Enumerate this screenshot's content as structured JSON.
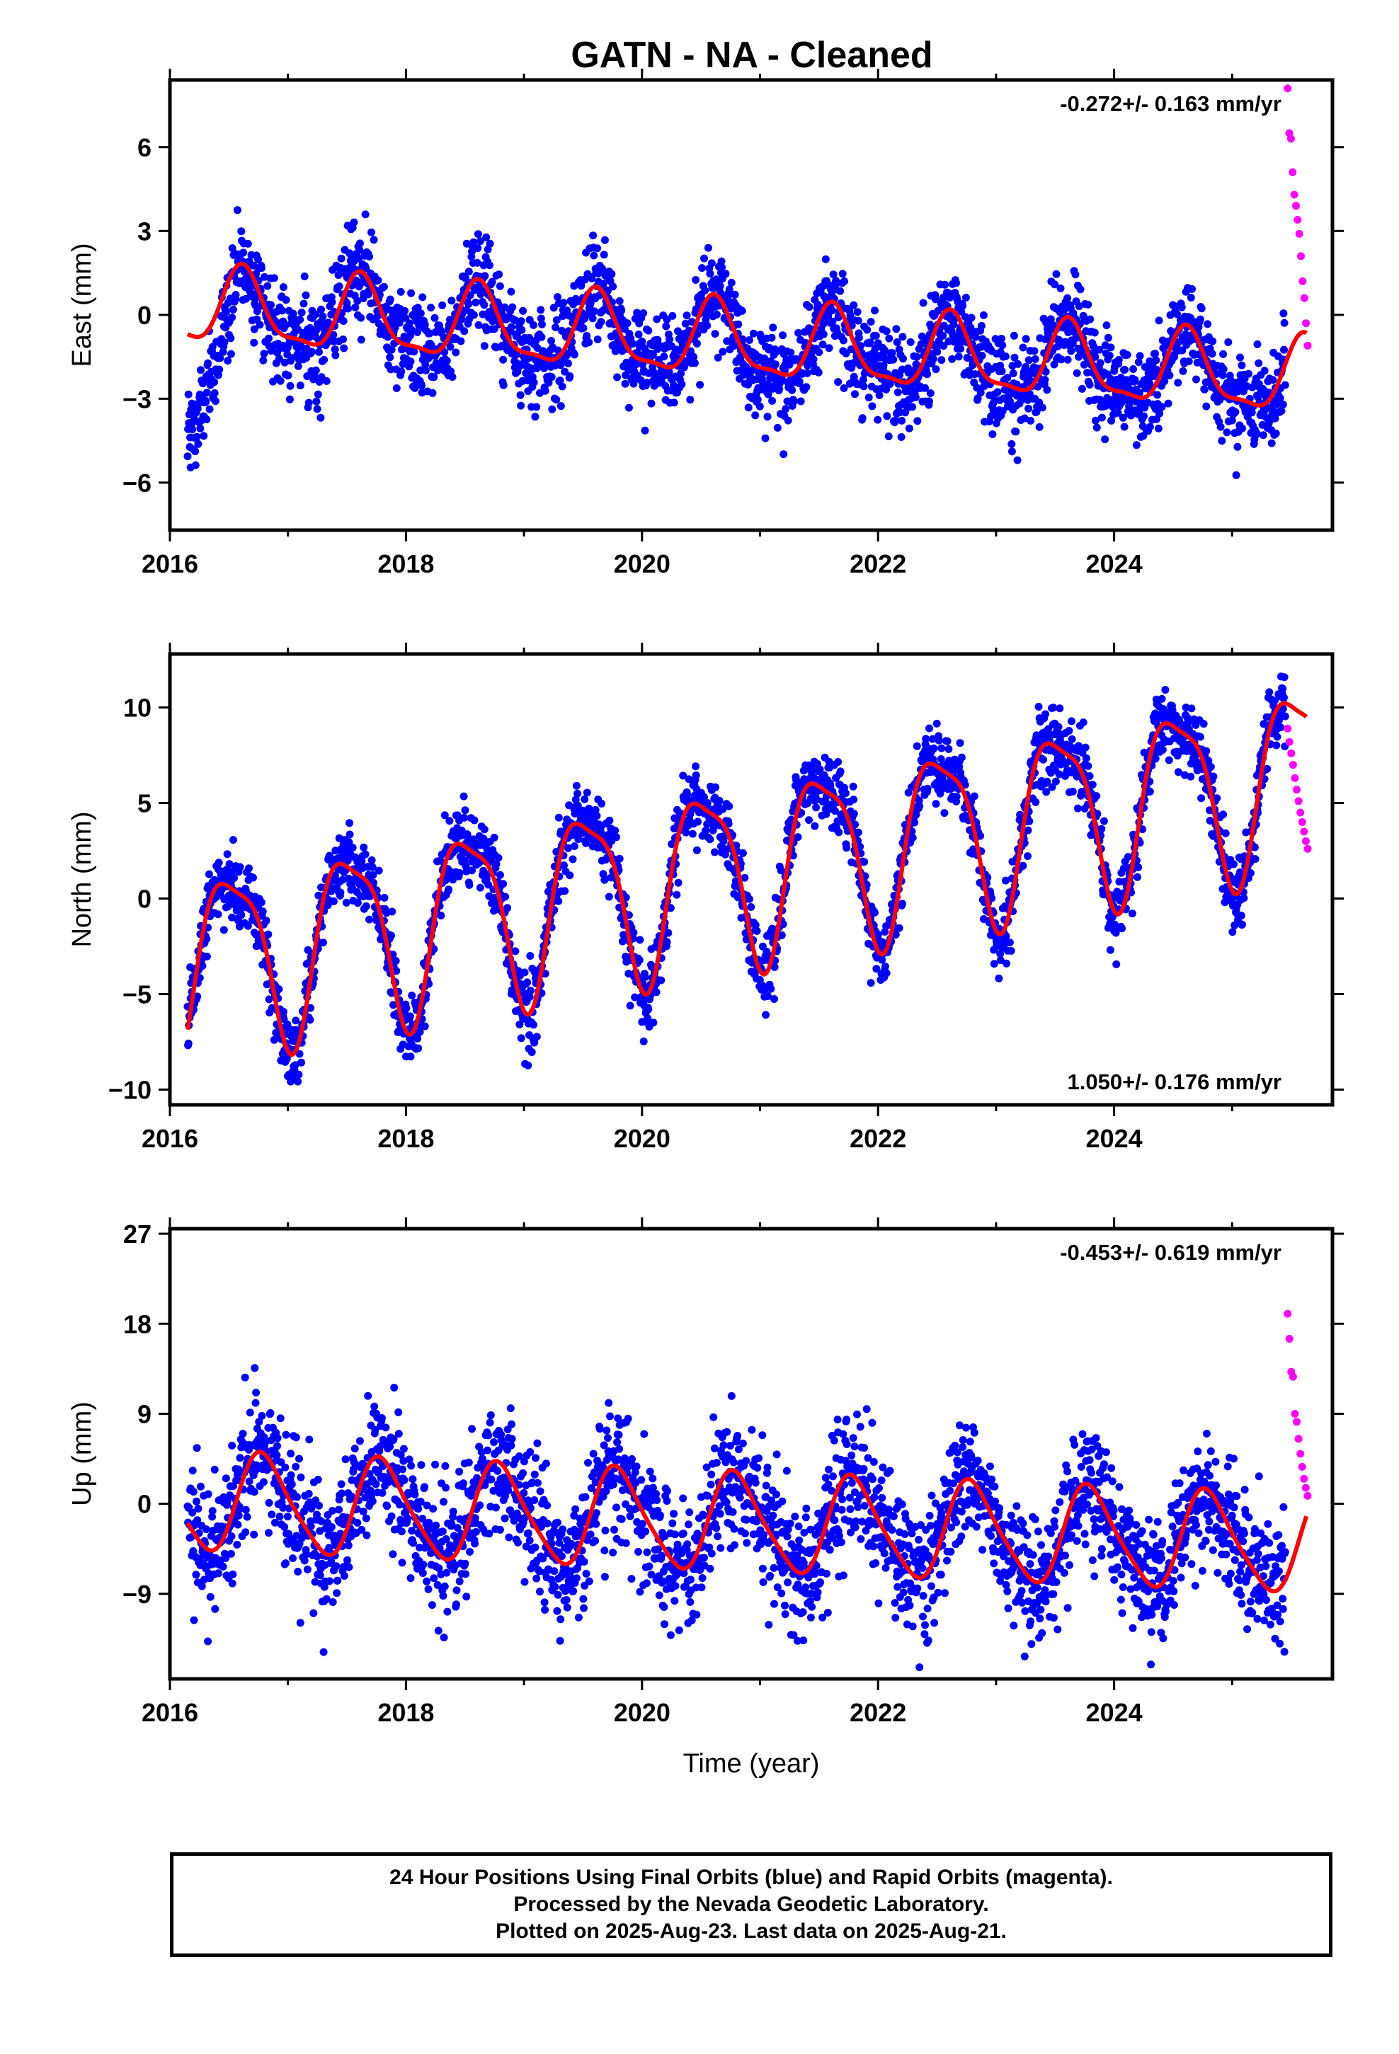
{
  "title": "GATN  - NA - Cleaned",
  "colors": {
    "final": "#0000ff",
    "rapid": "#ff00ff",
    "fit": "#ff0000",
    "axis": "#000000"
  },
  "footer": {
    "line1": "24 Hour Positions Using Final Orbits (blue) and Rapid Orbits (magenta).",
    "line2": "Processed by the Nevada Geodetic Laboratory.",
    "line3": "Plotted on 2025-Aug-23. Last data on 2025-Aug-21."
  },
  "chart_data": [
    {
      "type": "scatter",
      "component": "east",
      "ylabel": "East (mm)",
      "xlabel": "",
      "xlim": [
        2016.0,
        2025.85
      ],
      "ylim": [
        -7.7,
        8.4
      ],
      "xticks": [
        2016,
        2018,
        2020,
        2022,
        2024
      ],
      "yticks": [
        -6,
        -3,
        0,
        3,
        6
      ],
      "velocity_label": "-0.272+/- 0.163 mm/yr",
      "velocity_position": "top-right",
      "fit": {
        "trend_at_2016": 0.3,
        "rate": -0.272,
        "annual_amp": 1.3,
        "annual_peak": 0.62,
        "semiannual_amp": 0.4,
        "semiannual_peak": 0.1
      },
      "scatter_sigma": 0.85,
      "early_offset": {
        "until": 2016.55,
        "start_value": -4.5
      },
      "series": [
        {
          "name": "Final Orbits (blue)",
          "x_range": [
            2016.15,
            2025.45
          ],
          "count": 2600
        },
        {
          "name": "Rapid Orbits (magenta)",
          "x_range": [
            2025.47,
            2025.64
          ],
          "values": [
            8.1,
            6.5,
            6.3,
            5.1,
            4.3,
            3.9,
            3.4,
            2.9,
            2.1,
            1.2,
            0.6,
            -0.3,
            -1.1
          ]
        }
      ]
    },
    {
      "type": "scatter",
      "component": "north",
      "ylabel": "North (mm)",
      "xlabel": "",
      "xlim": [
        2016.0,
        2025.85
      ],
      "ylim": [
        -10.8,
        12.8
      ],
      "xticks": [
        2016,
        2018,
        2020,
        2022,
        2024
      ],
      "yticks": [
        -10,
        -5,
        0,
        5,
        10
      ],
      "velocity_label": "1.050+/- 0.176 mm/yr",
      "velocity_position": "bottom-right",
      "fit": {
        "trend_at_2016": -3.5,
        "rate": 1.05,
        "annual_amp": 4.6,
        "annual_peak": 0.52,
        "semiannual_amp": 1.2,
        "semiannual_peak": 0.3
      },
      "scatter_sigma": 0.95,
      "series": [
        {
          "name": "Final Orbits (blue)",
          "x_range": [
            2016.15,
            2025.45
          ],
          "count": 2600
        },
        {
          "name": "Rapid Orbits (magenta)",
          "x_range": [
            2025.47,
            2025.64
          ],
          "values": [
            8.9,
            8.2,
            7.6,
            7.0,
            6.3,
            5.7,
            5.1,
            4.5,
            4.0,
            3.5,
            3.0,
            2.6
          ]
        }
      ]
    },
    {
      "type": "scatter",
      "component": "up",
      "ylabel": "Up (mm)",
      "xlabel": "Time (year)",
      "xlim": [
        2016.0,
        2025.85
      ],
      "ylim": [
        -17.5,
        27.5
      ],
      "xticks": [
        2016,
        2018,
        2020,
        2022,
        2024
      ],
      "yticks": [
        -9,
        0,
        9,
        18,
        27
      ],
      "velocity_label": "-0.453+/- 0.619 mm/yr",
      "velocity_position": "top-right",
      "fit": {
        "trend_at_2016": 0.3,
        "rate": -0.453,
        "annual_amp": 4.8,
        "annual_peak": 0.8,
        "semiannual_amp": 0.8,
        "semiannual_peak": 0.2
      },
      "scatter_sigma": 3.2,
      "series": [
        {
          "name": "Final Orbits (blue)",
          "x_range": [
            2016.15,
            2025.45
          ],
          "count": 2600
        },
        {
          "name": "Rapid Orbits (magenta)",
          "x_range": [
            2025.47,
            2025.64
          ],
          "values": [
            19.0,
            16.5,
            13.2,
            12.7,
            9.0,
            8.2,
            6.5,
            5.0,
            3.7,
            2.5,
            1.6,
            0.8
          ]
        }
      ]
    }
  ]
}
